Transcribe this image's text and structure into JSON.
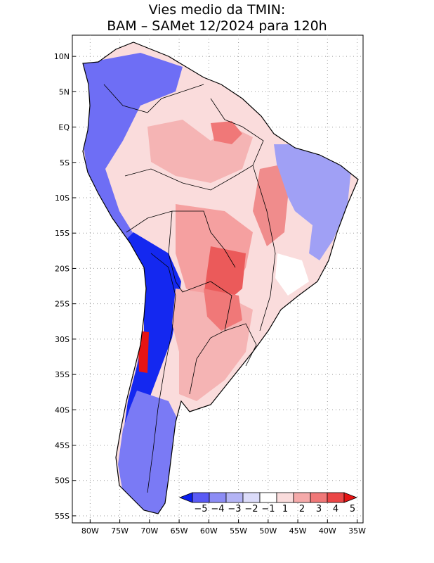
{
  "title": {
    "line1": "Vies medio da TMIN:",
    "line2": "BAM – SAMet 12/2024  para 120h"
  },
  "map": {
    "lon_range": [
      -83,
      -34
    ],
    "lat_range": [
      -56,
      13
    ],
    "lat_ticks": [
      {
        "value": 10,
        "label": "10N"
      },
      {
        "value": 5,
        "label": "5N"
      },
      {
        "value": 0,
        "label": "EQ"
      },
      {
        "value": -5,
        "label": "5S"
      },
      {
        "value": -10,
        "label": "10S"
      },
      {
        "value": -15,
        "label": "15S"
      },
      {
        "value": -20,
        "label": "20S"
      },
      {
        "value": -25,
        "label": "25S"
      },
      {
        "value": -30,
        "label": "30S"
      },
      {
        "value": -35,
        "label": "35S"
      },
      {
        "value": -40,
        "label": "40S"
      },
      {
        "value": -45,
        "label": "45S"
      },
      {
        "value": -50,
        "label": "50S"
      },
      {
        "value": -55,
        "label": "55S"
      }
    ],
    "lon_ticks": [
      {
        "value": -80,
        "label": "80W"
      },
      {
        "value": -75,
        "label": "75W"
      },
      {
        "value": -70,
        "label": "70W"
      },
      {
        "value": -65,
        "label": "65W"
      },
      {
        "value": -60,
        "label": "60W"
      },
      {
        "value": -55,
        "label": "55W"
      },
      {
        "value": -50,
        "label": "50W"
      },
      {
        "value": -45,
        "label": "45W"
      },
      {
        "value": -40,
        "label": "40W"
      },
      {
        "value": -35,
        "label": "35W"
      }
    ]
  },
  "colorbar": {
    "labels": [
      "−5",
      "−4",
      "−3",
      "−2",
      "−1",
      "1",
      "2",
      "3",
      "4",
      "5"
    ],
    "colors": [
      "#0a1ef0",
      "#5a5af5",
      "#8c8cf5",
      "#b4b4f5",
      "#dcdcfa",
      "#ffffff",
      "#fadcdc",
      "#f5aaaa",
      "#f07878",
      "#eb4646",
      "#e61414"
    ]
  },
  "regions": [
    {
      "name": "northwest-coast-negative-bias",
      "bias": -3,
      "color": "#6e6ef5"
    },
    {
      "name": "andes-strong-negative-bias",
      "bias": -5,
      "color": "#1428f0"
    },
    {
      "name": "patagonia-negative-bias",
      "bias": -3,
      "color": "#7a7af5"
    },
    {
      "name": "northeast-brazil-negative-bias",
      "bias": -2,
      "color": "#a0a0f5"
    },
    {
      "name": "amazon-positive-bias",
      "bias": 1,
      "color": "#fadcdc"
    },
    {
      "name": "central-brazil-positive-bias",
      "bias": 3,
      "color": "#f5a0a0"
    },
    {
      "name": "southern-positive-bias",
      "bias": 2,
      "color": "#f5b4b4"
    }
  ]
}
